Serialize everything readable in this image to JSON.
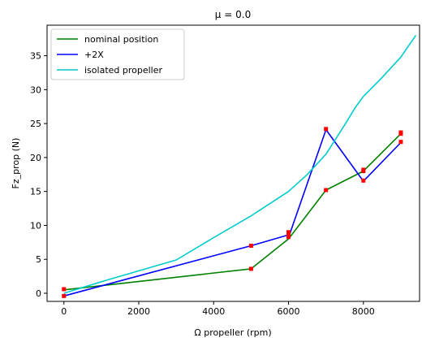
{
  "chart_data": {
    "type": "line",
    "title": "μ = 0.0",
    "xlabel": "Ω propeller (rpm)",
    "ylabel": "Fz_prop (N)",
    "xlim": [
      -450,
      9500
    ],
    "ylim": [
      -1.2,
      39.5
    ],
    "xticks": [
      0,
      2000,
      4000,
      6000,
      8000
    ],
    "yticks": [
      0,
      5,
      10,
      15,
      20,
      25,
      30,
      35
    ],
    "grid": false,
    "legend_position": "top-left",
    "series": [
      {
        "name": "nominal position",
        "color": "#008000",
        "x": [
          0,
          5000,
          6000,
          7000,
          8000,
          9000
        ],
        "y": [
          0.5,
          3.6,
          8.0,
          15.2,
          18.0,
          23.5
        ],
        "marker_x": [
          0,
          5000,
          6000,
          6000,
          7000,
          8000,
          8000,
          9000,
          9000
        ],
        "marker_y": [
          0.6,
          3.6,
          8.3,
          8.6,
          15.2,
          18.2,
          16.6,
          23.5,
          22.3
        ]
      },
      {
        "name": "+2X",
        "color": "#0000ff",
        "x": [
          0,
          5000,
          6000,
          6000,
          7000,
          8000,
          9000
        ],
        "y": [
          -0.4,
          7.0,
          8.6,
          8.2,
          24.1,
          16.5,
          22.2
        ],
        "marker_x": [
          0,
          5000,
          6000,
          7000,
          8000,
          9000
        ],
        "marker_y": [
          -0.4,
          7.0,
          9.0,
          24.2,
          18.0,
          23.7
        ]
      },
      {
        "name": "isolated propeller",
        "color": "#00cccc",
        "x": [
          0,
          1000,
          2000,
          3000,
          4000,
          5000,
          6000,
          6500,
          7000,
          7500,
          7800,
          8000,
          8500,
          9000,
          9400
        ],
        "y": [
          0.0,
          1.7,
          3.3,
          4.9,
          8.2,
          11.4,
          15.0,
          17.5,
          20.5,
          24.8,
          27.5,
          29.0,
          31.8,
          34.8,
          38.0
        ]
      }
    ]
  }
}
